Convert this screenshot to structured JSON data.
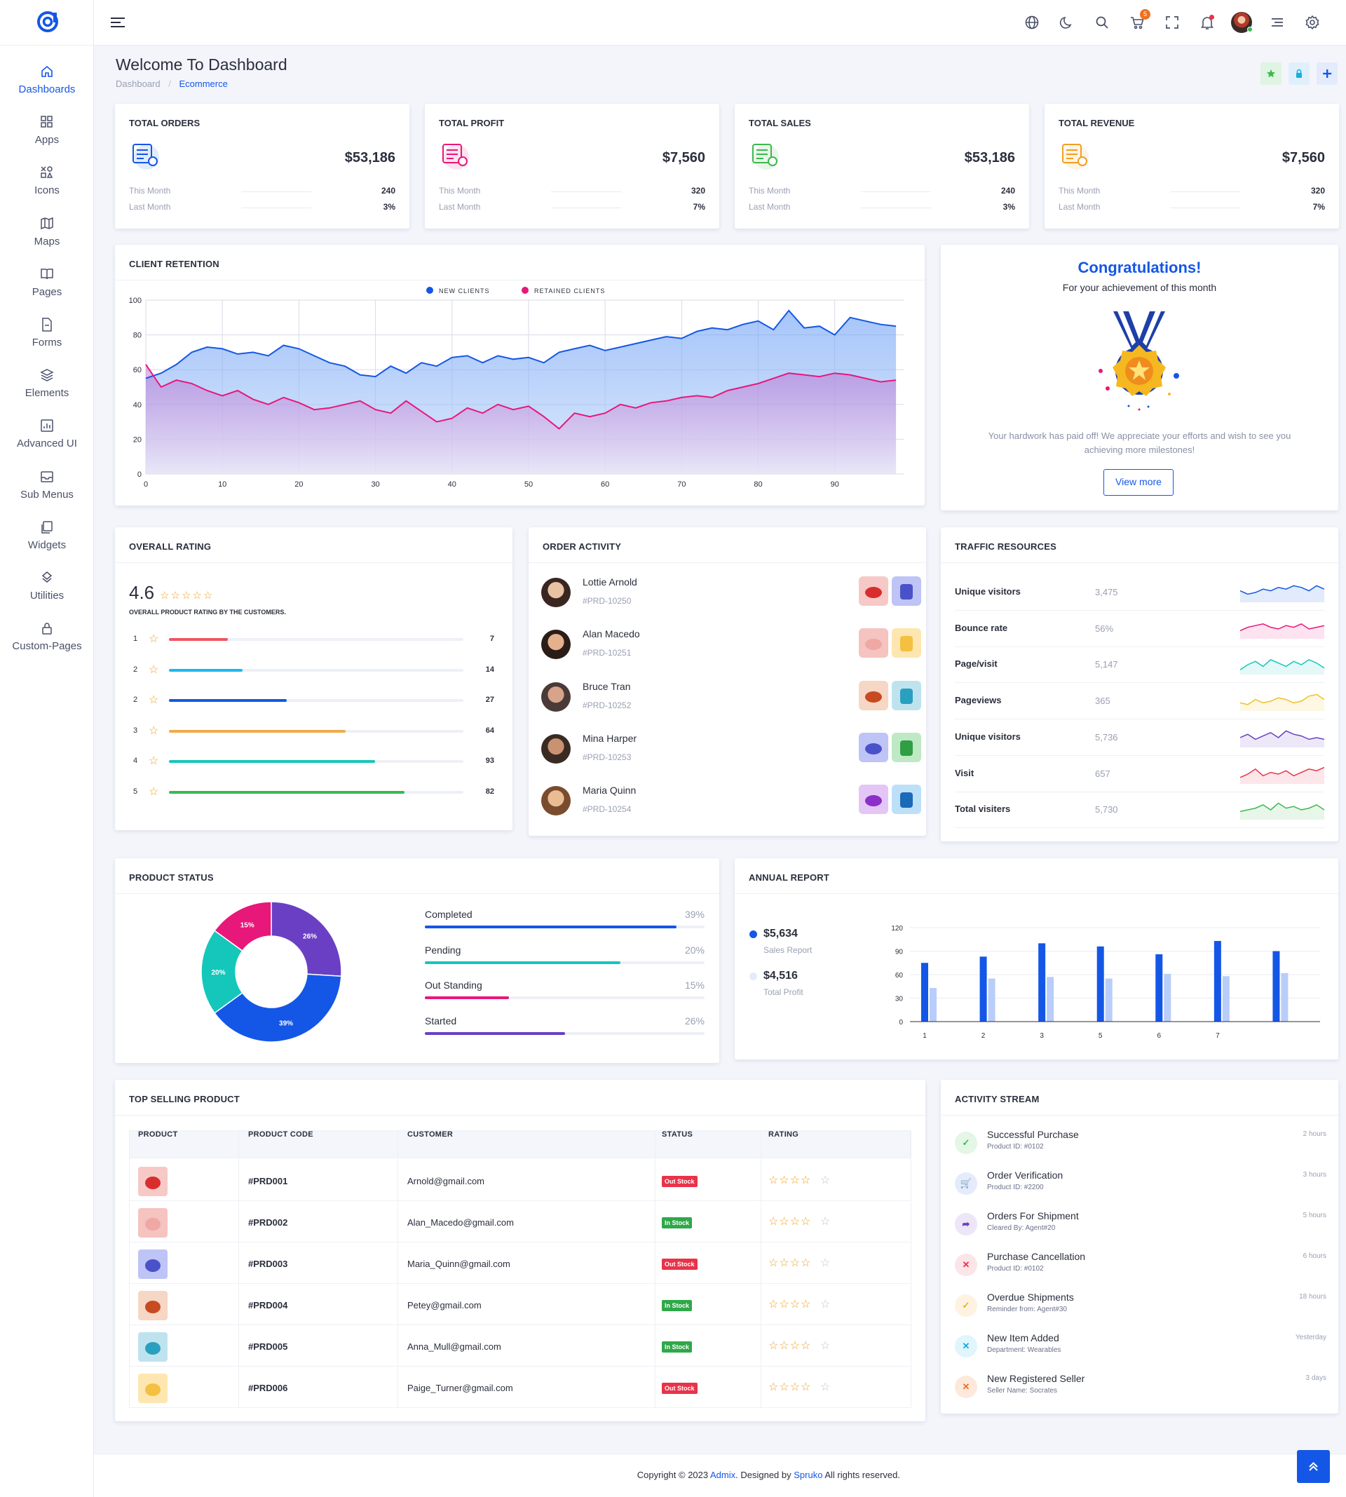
{
  "header": {
    "cart_count": "5"
  },
  "sidebar": {
    "items": [
      {
        "label": "Dashboards"
      },
      {
        "label": "Apps"
      },
      {
        "label": "Icons"
      },
      {
        "label": "Maps"
      },
      {
        "label": "Pages"
      },
      {
        "label": "Forms"
      },
      {
        "label": "Elements"
      },
      {
        "label": "Advanced UI"
      },
      {
        "label": "Sub Menus"
      },
      {
        "label": "Widgets"
      },
      {
        "label": "Utilities"
      },
      {
        "label": "Custom-Pages"
      }
    ]
  },
  "page": {
    "title": "Welcome To Dashboard",
    "breadcrumb": [
      "Dashboard",
      "Ecommerce"
    ]
  },
  "kpis": [
    {
      "title": "TOTAL ORDERS",
      "value": "$53,186",
      "this_month_label": "This Month",
      "this_month": "240",
      "last_month_label": "Last Month",
      "last_month": "3%",
      "color": "#1457e6"
    },
    {
      "title": "TOTAL PROFIT",
      "value": "$7,560",
      "this_month_label": "This Month",
      "this_month": "320",
      "last_month_label": "Last Month",
      "last_month": "7%",
      "color": "#e8177a"
    },
    {
      "title": "TOTAL SALES",
      "value": "$53,186",
      "this_month_label": "This Month",
      "this_month": "240",
      "last_month_label": "Last Month",
      "last_month": "3%",
      "color": "#3cb94d"
    },
    {
      "title": "TOTAL REVENUE",
      "value": "$7,560",
      "this_month_label": "This Month",
      "this_month": "320",
      "last_month_label": "Last Month",
      "last_month": "7%",
      "color": "#f29f1f"
    }
  ],
  "retention": {
    "title": "CLIENT RETENTION",
    "legend": [
      "NEW CLIENTS",
      "RETAINED CLIENTS"
    ]
  },
  "congrats": {
    "title": "Congratulations!",
    "subtitle": "For your achievement of this month",
    "body": "Your hardwork has paid off! We appreciate your efforts and wish to see you achieving more milestones!",
    "button": "View more"
  },
  "rating": {
    "title": "OVERALL RATING",
    "score": "4.6",
    "caption": "OVERALL PRODUCT RATING BY THE CUSTOMERS.",
    "rows": [
      {
        "label": "1",
        "count": "7",
        "fraction": 0.2,
        "color": "#f1545e"
      },
      {
        "label": "2",
        "count": "14",
        "fraction": 0.25,
        "color": "#1eb8f0"
      },
      {
        "label": "2",
        "count": "27",
        "fraction": 0.4,
        "color": "#1457e6"
      },
      {
        "label": "3",
        "count": "64",
        "fraction": 0.6,
        "color": "#f0ac4a"
      },
      {
        "label": "4",
        "count": "93",
        "fraction": 0.7,
        "color": "#15c7bb"
      },
      {
        "label": "5",
        "count": "82",
        "fraction": 0.8,
        "color": "#3cb94d"
      }
    ]
  },
  "orders": {
    "title": "ORDER ACTIVITY",
    "rows": [
      {
        "name": "Lottie Arnold",
        "code": "#PRD-10250"
      },
      {
        "name": "Alan Macedo",
        "code": "#PRD-10251"
      },
      {
        "name": "Bruce Tran",
        "code": "#PRD-10252"
      },
      {
        "name": "Mina Harper",
        "code": "#PRD-10253"
      },
      {
        "name": "Maria Quinn",
        "code": "#PRD-10254"
      }
    ]
  },
  "traffic": {
    "title": "TRAFFIC RESOURCES",
    "rows": [
      {
        "label": "Unique visitors",
        "value": "3,475",
        "color": "#1457e6"
      },
      {
        "label": "Bounce rate",
        "value": "56%",
        "color": "#e8177a"
      },
      {
        "label": "Page/visit",
        "value": "5,147",
        "color": "#15c7bb"
      },
      {
        "label": "Pageviews",
        "value": "365",
        "color": "#f0c020"
      },
      {
        "label": "Unique visitors",
        "value": "5,736",
        "color": "#6a3fc4"
      },
      {
        "label": "Visit",
        "value": "657",
        "color": "#e8334a"
      },
      {
        "label": "Total visiters",
        "value": "5,730",
        "color": "#3cb94d"
      }
    ]
  },
  "product_status": {
    "title": "PRODUCT STATUS",
    "bars": [
      {
        "label": "Completed",
        "pct": "39%",
        "fraction": 0.9,
        "color": "#1457e6"
      },
      {
        "label": "Pending",
        "pct": "20%",
        "fraction": 0.7,
        "color": "#15c7bb"
      },
      {
        "label": "Out Standing",
        "pct": "15%",
        "fraction": 0.3,
        "color": "#e8177a"
      },
      {
        "label": "Started",
        "pct": "26%",
        "fraction": 0.5,
        "color": "#6a3fc4"
      }
    ]
  },
  "annual": {
    "title": "ANNUAL REPORT",
    "sales_value": "$5,634",
    "sales_label": "Sales Report",
    "profit_value": "$4,516",
    "profit_label": "Total Profit"
  },
  "top_selling": {
    "title": "TOP SELLING PRODUCT",
    "columns": [
      "PRODUCT",
      "PRODUCT CODE",
      "CUSTOMER",
      "STATUS",
      "RATING"
    ],
    "rows": [
      {
        "code": "#PRD001",
        "customer": "Arnold@gmail.com",
        "status": "Out Stock"
      },
      {
        "code": "#PRD002",
        "customer": "Alan_Macedo@gmail.com",
        "status": "In Stock"
      },
      {
        "code": "#PRD003",
        "customer": "Maria_Quinn@gmail.com",
        "status": "Out Stock"
      },
      {
        "code": "#PRD004",
        "customer": "Petey@gmail.com",
        "status": "In Stock"
      },
      {
        "code": "#PRD005",
        "customer": "Anna_Mull@gmail.com",
        "status": "In Stock"
      },
      {
        "code": "#PRD006",
        "customer": "Paige_Turner@gmail.com",
        "status": "Out Stock"
      }
    ]
  },
  "activity": {
    "title": "ACTIVITY STREAM",
    "rows": [
      {
        "title": "Successful Purchase",
        "sub": "Product ID: #0102",
        "time": "2 hours",
        "color": "#3cb94d",
        "bg": "#e4f6e6"
      },
      {
        "title": "Order Verification",
        "sub": "Product ID: #2200",
        "time": "3 hours",
        "color": "#1457e6",
        "bg": "#e3ebfc"
      },
      {
        "title": "Orders For Shipment",
        "sub": "Cleared By: Agent#20",
        "time": "5 hours",
        "color": "#6a3fc4",
        "bg": "#ece6f8"
      },
      {
        "title": "Purchase Cancellation",
        "sub": "Product ID: #0102",
        "time": "6 hours",
        "color": "#e8334a",
        "bg": "#fce5e8"
      },
      {
        "title": "Overdue Shipments",
        "sub": "Reminder from: Agent#30",
        "time": "18 hours",
        "color": "#f0ac20",
        "bg": "#fdf3e0"
      },
      {
        "title": "New Item Added",
        "sub": "Department: Wearables",
        "time": "Yesterday",
        "color": "#15aee0",
        "bg": "#e0f5fc"
      },
      {
        "title": "New Registered Seller",
        "sub": "Seller Name: Socrates",
        "time": "3 days",
        "color": "#f07020",
        "bg": "#fde9dc"
      }
    ]
  },
  "footer": {
    "prefix": "Copyright © 2023 ",
    "brand": "Admix",
    "middle": ". Designed by ",
    "author": "Spruko",
    "suffix": " All rights reserved."
  },
  "chart_data": [
    {
      "type": "area",
      "title": "CLIENT RETENTION",
      "x": [
        0,
        2,
        4,
        6,
        8,
        10,
        12,
        14,
        16,
        18,
        20,
        22,
        24,
        26,
        28,
        30,
        32,
        34,
        36,
        38,
        40,
        42,
        44,
        46,
        48,
        50,
        52,
        54,
        56,
        58,
        60,
        62,
        64,
        66,
        68,
        70,
        72,
        74,
        76,
        78,
        80,
        82,
        84,
        86,
        88,
        90,
        92,
        94,
        96,
        98
      ],
      "xlim": [
        0,
        99
      ],
      "ylim": [
        0,
        100
      ],
      "xticks": [
        0,
        10,
        20,
        30,
        40,
        50,
        60,
        70,
        80,
        90
      ],
      "yticks": [
        0,
        20,
        40,
        60,
        80,
        100
      ],
      "series": [
        {
          "name": "NEW CLIENTS",
          "color": "#1457e6",
          "values": [
            55,
            58,
            63,
            70,
            73,
            72,
            69,
            70,
            68,
            74,
            72,
            68,
            64,
            62,
            57,
            56,
            62,
            58,
            64,
            62,
            67,
            68,
            64,
            68,
            66,
            67,
            64,
            70,
            72,
            74,
            71,
            73,
            75,
            77,
            79,
            78,
            82,
            84,
            83,
            86,
            88,
            83,
            94,
            84,
            85,
            80,
            90,
            88,
            86,
            85
          ]
        },
        {
          "name": "RETAINED CLIENTS",
          "color": "#e8177a",
          "values": [
            63,
            50,
            54,
            52,
            48,
            45,
            48,
            43,
            40,
            44,
            41,
            37,
            38,
            40,
            42,
            37,
            35,
            42,
            36,
            30,
            32,
            38,
            35,
            40,
            37,
            39,
            33,
            26,
            35,
            33,
            35,
            40,
            38,
            41,
            42,
            44,
            45,
            44,
            48,
            50,
            52,
            55,
            58,
            57,
            56,
            58,
            57,
            55,
            53,
            54
          ]
        }
      ]
    },
    {
      "type": "pie",
      "title": "PRODUCT STATUS",
      "labels": [
        "Started",
        "Completed",
        "Pending",
        "Out Standing"
      ],
      "values": [
        26,
        39,
        20,
        15
      ],
      "colors": [
        "#6a3fc4",
        "#1457e6",
        "#15c7bb",
        "#e8177a"
      ],
      "donut": true
    },
    {
      "type": "bar",
      "title": "ANNUAL REPORT",
      "categories": [
        "1",
        "2",
        "3",
        "5",
        "6",
        "7",
        ""
      ],
      "ylim": [
        0,
        120
      ],
      "yticks": [
        0,
        30,
        60,
        90,
        120
      ],
      "series": [
        {
          "color": "#1457e6",
          "values": [
            75,
            83,
            100,
            96,
            86,
            103,
            90
          ]
        },
        {
          "color": "#b9cdfa",
          "values": [
            43,
            55,
            57,
            55,
            61,
            58,
            62
          ]
        }
      ]
    }
  ]
}
